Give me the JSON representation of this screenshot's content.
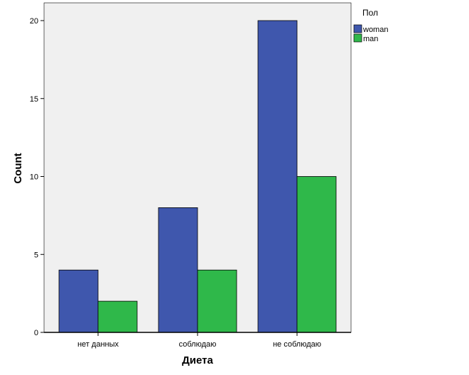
{
  "chart_data": {
    "type": "bar",
    "categories": [
      "нет данных",
      "соблюдаю",
      "не соблюдаю"
    ],
    "series": [
      {
        "name": "woman",
        "values": [
          4,
          8,
          20
        ],
        "color": "#3f57ad"
      },
      {
        "name": "man",
        "values": [
          2,
          4,
          10
        ],
        "color": "#2fb84a"
      }
    ],
    "xlabel": "Диета",
    "ylabel": "Count",
    "ylim": [
      0,
      20
    ],
    "yticks": [
      0,
      5,
      10,
      15,
      20
    ],
    "legend_title": "Пол",
    "legend_position": "top-right",
    "plot_background": "#f0f0f0",
    "grid": false
  }
}
